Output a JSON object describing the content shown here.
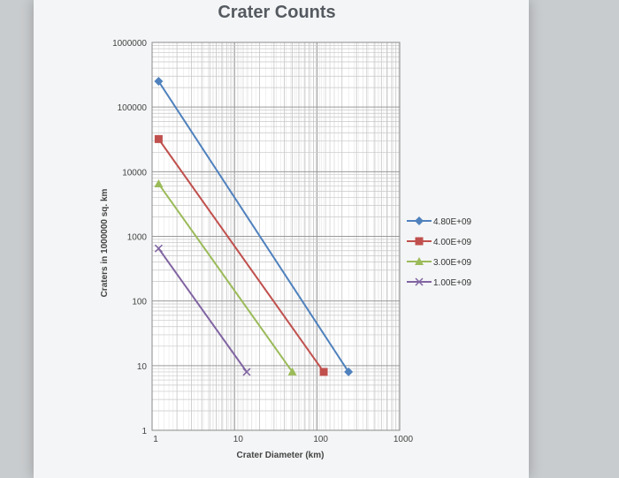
{
  "chart_data": {
    "type": "line",
    "title": "Crater Counts",
    "xlabel": "Crater Diameter (km)",
    "ylabel": "Craters in 1000000 sq. km",
    "x_scale": "log",
    "y_scale": "log",
    "xlim": [
      1,
      1000
    ],
    "ylim": [
      1,
      1000000
    ],
    "x_ticks": [
      "1",
      "10",
      "100",
      "1000"
    ],
    "y_ticks": [
      "1",
      "10",
      "100",
      "1000",
      "10000",
      "100000",
      "1000000"
    ],
    "grid": true,
    "legend_position": "right",
    "series": [
      {
        "name": "4.80E+09",
        "color": "#4f81bd",
        "marker": "diamond",
        "x": [
          1.2,
          240
        ],
        "y": [
          250000,
          8
        ]
      },
      {
        "name": "4.00E+09",
        "color": "#c0504d",
        "marker": "square",
        "x": [
          1.2,
          120
        ],
        "y": [
          32000,
          8
        ]
      },
      {
        "name": "3.00E+09",
        "color": "#9bbb59",
        "marker": "triangle",
        "x": [
          1.2,
          50
        ],
        "y": [
          6500,
          8
        ]
      },
      {
        "name": "1.00E+09",
        "color": "#8064a2",
        "marker": "x",
        "x": [
          1.2,
          14
        ],
        "y": [
          650,
          8
        ]
      }
    ]
  }
}
